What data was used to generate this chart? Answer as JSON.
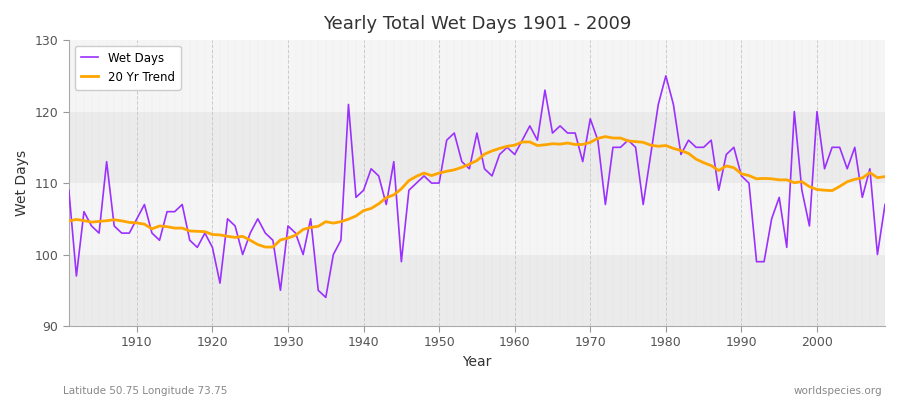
{
  "title": "Yearly Total Wet Days 1901 - 2009",
  "xlabel": "Year",
  "ylabel": "Wet Days",
  "bottom_left_label": "Latitude 50.75 Longitude 73.75",
  "bottom_right_label": "worldspecies.org",
  "ylim": [
    90,
    130
  ],
  "xlim": [
    1901,
    2009
  ],
  "figure_bg_color": "#ffffff",
  "plot_bg_color": "#f5f5f5",
  "band_color_light": "#ebebeb",
  "band_color_dark": "#f5f5f5",
  "wet_days_color": "#9B30FF",
  "trend_color": "#FFA500",
  "grid_color": "#cccccc",
  "legend_labels": [
    "Wet Days",
    "20 Yr Trend"
  ],
  "years": [
    1901,
    1902,
    1903,
    1904,
    1905,
    1906,
    1907,
    1908,
    1909,
    1910,
    1911,
    1912,
    1913,
    1914,
    1915,
    1916,
    1917,
    1918,
    1919,
    1920,
    1921,
    1922,
    1923,
    1924,
    1925,
    1926,
    1927,
    1928,
    1929,
    1930,
    1931,
    1932,
    1933,
    1934,
    1935,
    1936,
    1937,
    1938,
    1939,
    1940,
    1941,
    1942,
    1943,
    1944,
    1945,
    1946,
    1947,
    1948,
    1949,
    1950,
    1951,
    1952,
    1953,
    1954,
    1955,
    1956,
    1957,
    1958,
    1959,
    1960,
    1961,
    1962,
    1963,
    1964,
    1965,
    1966,
    1967,
    1968,
    1969,
    1970,
    1971,
    1972,
    1973,
    1974,
    1975,
    1976,
    1977,
    1978,
    1979,
    1980,
    1981,
    1982,
    1983,
    1984,
    1985,
    1986,
    1987,
    1988,
    1989,
    1990,
    1991,
    1992,
    1993,
    1994,
    1995,
    1996,
    1997,
    1998,
    1999,
    2000,
    2001,
    2002,
    2003,
    2004,
    2005,
    2006,
    2007,
    2008,
    2009
  ],
  "wet_days": [
    109,
    97,
    106,
    104,
    103,
    113,
    104,
    103,
    103,
    105,
    107,
    103,
    102,
    106,
    106,
    107,
    102,
    101,
    103,
    101,
    96,
    105,
    104,
    100,
    103,
    105,
    103,
    102,
    95,
    104,
    103,
    100,
    105,
    95,
    94,
    100,
    102,
    121,
    108,
    109,
    112,
    111,
    107,
    113,
    99,
    109,
    110,
    111,
    110,
    110,
    116,
    117,
    113,
    112,
    117,
    112,
    111,
    114,
    115,
    114,
    116,
    118,
    116,
    123,
    117,
    118,
    117,
    117,
    113,
    119,
    116,
    107,
    115,
    115,
    116,
    115,
    107,
    114,
    121,
    125,
    121,
    114,
    116,
    115,
    115,
    116,
    109,
    114,
    115,
    111,
    110,
    99,
    99,
    105,
    108,
    101,
    120,
    109,
    104,
    120,
    112,
    115,
    115,
    112,
    115,
    108,
    112,
    100,
    107
  ]
}
